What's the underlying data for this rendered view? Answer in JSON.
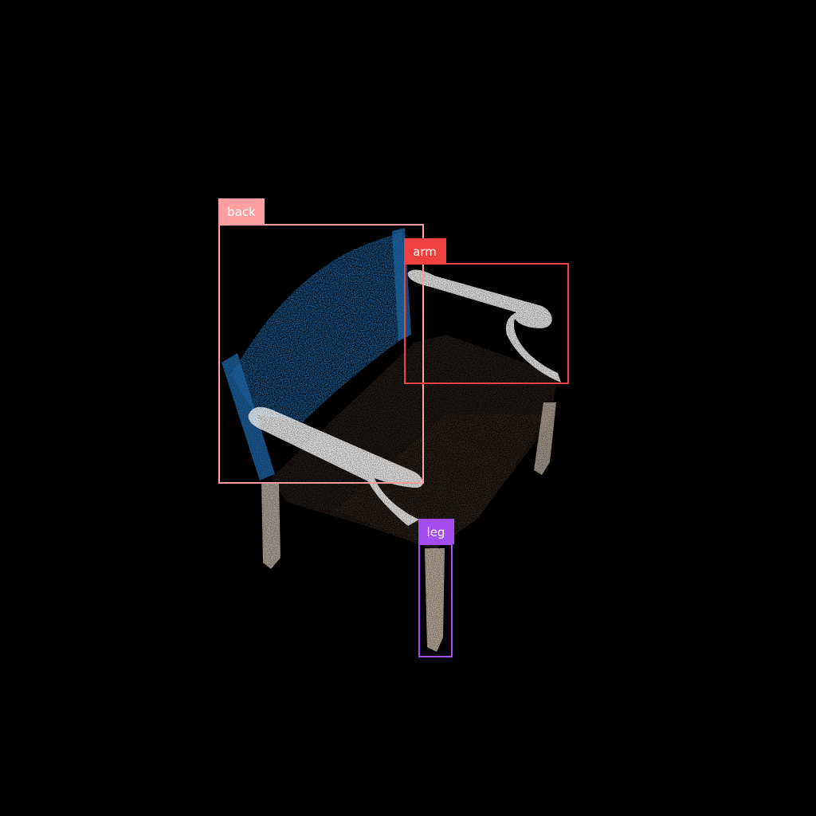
{
  "colors": {
    "background": "#000000",
    "back_box": "#FF9E9E",
    "arm_box": "#F04040",
    "leg_box": "#A64DF0",
    "label_text": "#FFFFFF",
    "back_points": "#1E63A0",
    "arm_points": "#EDEDED",
    "seat_points": "#2A211B",
    "leg_points": "#B4A89A"
  },
  "annotations": [
    {
      "id": "back",
      "label": "back"
    },
    {
      "id": "arm",
      "label": "arm"
    },
    {
      "id": "leg",
      "label": "leg"
    }
  ]
}
